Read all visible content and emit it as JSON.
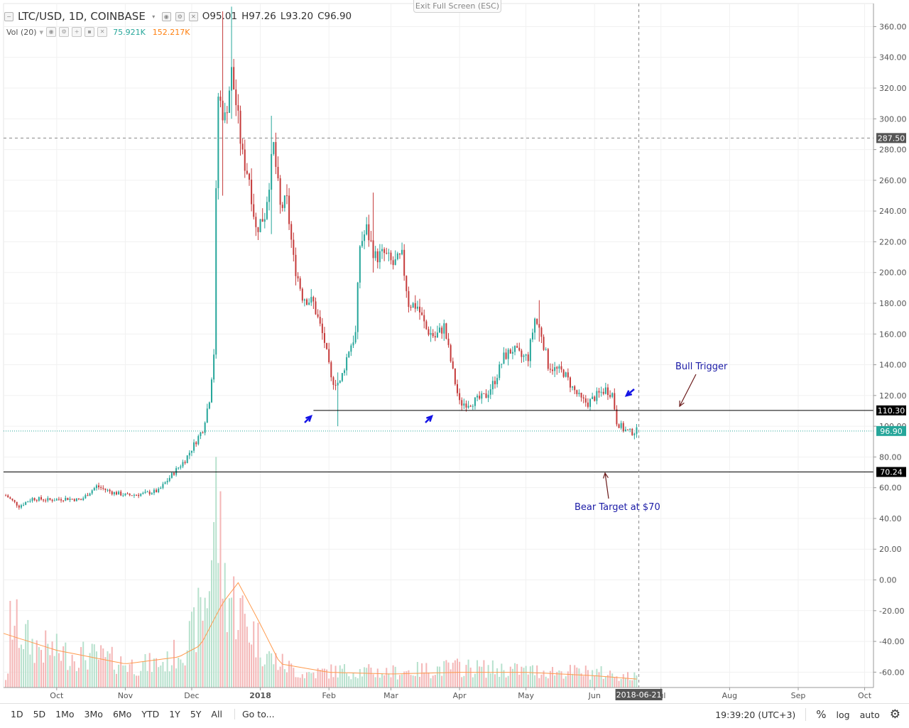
{
  "legend": {
    "collapse_icon": "minus-box-icon",
    "symbol": "LTC/USD, 1D, COINBASE",
    "open": "O95.01",
    "high": "H97.26",
    "low": "L93.20",
    "close": "C96.90"
  },
  "volume_legend": {
    "label": "Vol (20)",
    "vol": "75.921K",
    "vol_ma": "152.217K",
    "vol_color": "#26a69a",
    "vol_ma_color": "#ff7f0e"
  },
  "exit_fullscreen": "Exit Full Screen (ESC)",
  "annotations": {
    "bull_trigger": "Bull Trigger",
    "bear_target": "Bear Target at $70"
  },
  "price_tags": {
    "crosshair_price": "287.50",
    "resistance": "110.30",
    "last_price": "96.90",
    "support": "70.24"
  },
  "crosshair_date": "2018-06-21",
  "bottom_bar": {
    "ranges": [
      "1D",
      "5D",
      "1Mo",
      "3Mo",
      "6Mo",
      "YTD",
      "1Y",
      "5Y",
      "All"
    ],
    "goto": "Go to...",
    "clock": "19:39:20 (UTC+3)",
    "percent": "%",
    "log": "log",
    "auto": "auto",
    "settings_icon": "gear-icon"
  },
  "colors": {
    "up": "#26a69a",
    "down": "#c53a3a",
    "volume_up": "#b7e1cd",
    "volume_down": "#f4b6b6",
    "annotation_text": "#1a1aa6",
    "arrow_blue": "#1414e6",
    "arrow_dark": "#6b1a1a"
  },
  "chart_data": {
    "type": "candlestick",
    "title": "LTC/USD, 1D, COINBASE",
    "x_tick_labels": [
      "Oct",
      "Nov",
      "Dec",
      "2018",
      "Feb",
      "Mar",
      "Apr",
      "May",
      "Jun",
      "Jul",
      "Aug",
      "Sep",
      "Oct"
    ],
    "y_tick_labels": [
      "360.00",
      "340.00",
      "320.00",
      "300.00",
      "280.00",
      "260.00",
      "240.00",
      "220.00",
      "200.00",
      "180.00",
      "160.00",
      "140.00",
      "120.00",
      "100.00",
      "80.00",
      "60.00",
      "40.00",
      "20.00",
      "0.00",
      "-20.00",
      "-40.00",
      "-60.00"
    ],
    "ylim": [
      -70,
      375
    ],
    "x_range": [
      "2017-09-07",
      "2018-10-05"
    ],
    "grid": true,
    "horizontal_lines": [
      {
        "price": 110.3,
        "from": "2018-01-25",
        "to": "2018-10-05"
      },
      {
        "price": 70.24,
        "from": "2017-09-07",
        "to": "2018-10-05"
      },
      {
        "price": 287.5,
        "from": "2017-09-07",
        "to": "2018-10-05",
        "style": "dashed"
      }
    ],
    "last_price_line": 96.9,
    "crosshair_date": "2018-06-21",
    "close_path": [
      [
        "2017-09-08",
        55
      ],
      [
        "2017-09-14",
        48
      ],
      [
        "2017-09-20",
        53
      ],
      [
        "2017-09-28",
        52
      ],
      [
        "2017-10-05",
        53
      ],
      [
        "2017-10-12",
        52
      ],
      [
        "2017-10-19",
        61
      ],
      [
        "2017-10-26",
        57
      ],
      [
        "2017-11-02",
        55
      ],
      [
        "2017-11-09",
        56
      ],
      [
        "2017-11-16",
        58
      ],
      [
        "2017-11-23",
        70
      ],
      [
        "2017-11-28",
        78
      ],
      [
        "2017-12-02",
        88
      ],
      [
        "2017-12-06",
        98
      ],
      [
        "2017-12-09",
        118
      ],
      [
        "2017-12-11",
        148
      ],
      [
        "2017-12-12",
        250
      ],
      [
        "2017-12-13",
        315
      ],
      [
        "2017-12-16",
        300
      ],
      [
        "2017-12-19",
        330
      ],
      [
        "2017-12-21",
        310
      ],
      [
        "2017-12-24",
        275
      ],
      [
        "2017-12-27",
        262
      ],
      [
        "2017-12-30",
        228
      ],
      [
        "2018-01-03",
        238
      ],
      [
        "2018-01-07",
        282
      ],
      [
        "2018-01-10",
        242
      ],
      [
        "2018-01-13",
        246
      ],
      [
        "2018-01-16",
        208
      ],
      [
        "2018-01-20",
        185
      ],
      [
        "2018-01-25",
        180
      ],
      [
        "2018-01-30",
        155
      ],
      [
        "2018-02-02",
        130
      ],
      [
        "2018-02-06",
        128
      ],
      [
        "2018-02-10",
        150
      ],
      [
        "2018-02-13",
        160
      ],
      [
        "2018-02-15",
        218
      ],
      [
        "2018-02-18",
        228
      ],
      [
        "2018-02-22",
        210
      ],
      [
        "2018-02-26",
        212
      ],
      [
        "2018-03-02",
        205
      ],
      [
        "2018-03-06",
        210
      ],
      [
        "2018-03-09",
        180
      ],
      [
        "2018-03-13",
        178
      ],
      [
        "2018-03-17",
        163
      ],
      [
        "2018-03-21",
        158
      ],
      [
        "2018-03-25",
        165
      ],
      [
        "2018-03-29",
        135
      ],
      [
        "2018-04-01",
        115
      ],
      [
        "2018-04-05",
        115
      ],
      [
        "2018-04-09",
        117
      ],
      [
        "2018-04-13",
        120
      ],
      [
        "2018-04-17",
        130
      ],
      [
        "2018-04-21",
        145
      ],
      [
        "2018-04-25",
        150
      ],
      [
        "2018-04-29",
        145
      ],
      [
        "2018-05-02",
        145
      ],
      [
        "2018-05-05",
        170
      ],
      [
        "2018-05-08",
        160
      ],
      [
        "2018-05-11",
        140
      ],
      [
        "2018-05-14",
        137
      ],
      [
        "2018-05-18",
        135
      ],
      [
        "2018-05-22",
        125
      ],
      [
        "2018-05-26",
        117
      ],
      [
        "2018-05-29",
        115
      ],
      [
        "2018-06-02",
        120
      ],
      [
        "2018-06-06",
        124
      ],
      [
        "2018-06-09",
        121
      ],
      [
        "2018-06-11",
        103
      ],
      [
        "2018-06-14",
        98
      ],
      [
        "2018-06-17",
        96
      ],
      [
        "2018-06-20",
        96.9
      ]
    ],
    "wick_extremes": [
      {
        "date": "2017-12-19",
        "high": 373,
        "low": 300
      },
      {
        "date": "2017-12-15",
        "high": 370,
        "low": 250
      },
      {
        "date": "2018-01-06",
        "high": 302,
        "low": 225
      },
      {
        "date": "2018-02-05",
        "high": 135,
        "low": 100
      },
      {
        "date": "2018-02-21",
        "high": 252,
        "low": 200
      },
      {
        "date": "2018-05-07",
        "high": 182,
        "low": 155
      }
    ],
    "volume_path": [
      [
        "2017-09-10",
        40
      ],
      [
        "2017-09-20",
        25
      ],
      [
        "2017-10-05",
        20
      ],
      [
        "2017-10-20",
        18
      ],
      [
        "2017-11-05",
        13
      ],
      [
        "2017-11-20",
        15
      ],
      [
        "2017-12-01",
        30
      ],
      [
        "2017-12-08",
        55
      ],
      [
        "2017-12-12",
        110
      ],
      [
        "2017-12-16",
        60
      ],
      [
        "2017-12-25",
        40
      ],
      [
        "2018-01-05",
        18
      ],
      [
        "2018-01-20",
        8
      ],
      [
        "2018-02-05",
        10
      ],
      [
        "2018-03-01",
        9
      ],
      [
        "2018-04-01",
        12
      ],
      [
        "2018-05-01",
        10
      ],
      [
        "2018-06-01",
        9
      ],
      [
        "2018-06-20",
        6
      ]
    ],
    "volume_ma_path": [
      [
        "2017-09-07",
        32
      ],
      [
        "2017-10-01",
        22
      ],
      [
        "2017-11-01",
        14
      ],
      [
        "2017-11-25",
        18
      ],
      [
        "2017-12-05",
        25
      ],
      [
        "2017-12-15",
        50
      ],
      [
        "2017-12-22",
        62
      ],
      [
        "2017-12-31",
        40
      ],
      [
        "2018-01-10",
        14
      ],
      [
        "2018-02-01",
        9
      ],
      [
        "2018-03-01",
        8
      ],
      [
        "2018-04-01",
        9
      ],
      [
        "2018-05-01",
        9
      ],
      [
        "2018-06-01",
        7
      ],
      [
        "2018-06-20",
        5
      ]
    ]
  }
}
